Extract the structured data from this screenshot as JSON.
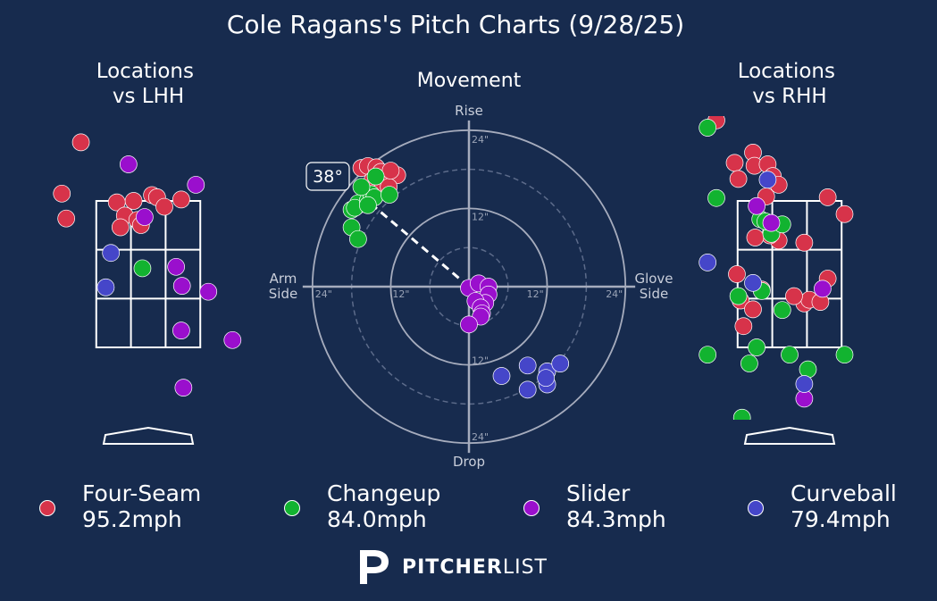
{
  "title": "Cole Ragans's Pitch Charts (9/28/25)",
  "colors": {
    "background": "#172b4e",
    "four_seam": "#d7334a",
    "changeup": "#12b330",
    "slider": "#9a0fcd",
    "curveball": "#4546c9"
  },
  "chart_data": [
    {
      "type": "scatter",
      "title": "Locations\nvs LHH",
      "x_units": "feet from plate center (catcher view)",
      "y_units": "feet above ground",
      "xlim": [
        -1.8,
        1.6
      ],
      "ylim": [
        0,
        5.1
      ],
      "strike_zone": {
        "x": [
          -0.71,
          0.71
        ],
        "y": [
          1.5,
          3.5
        ]
      },
      "series": [
        {
          "name": "Four-Seam",
          "points": [
            [
              -0.92,
              4.3
            ],
            [
              -1.18,
              3.6
            ],
            [
              -1.12,
              3.26
            ],
            [
              -0.2,
              3.5
            ],
            [
              0.05,
              3.58
            ],
            [
              0.12,
              3.55
            ],
            [
              0.22,
              3.42
            ],
            [
              0.45,
              3.52
            ],
            [
              -0.43,
              3.48
            ],
            [
              -0.32,
              3.3
            ],
            [
              -0.15,
              3.24
            ],
            [
              -0.1,
              3.17
            ],
            [
              -0.38,
              3.14
            ]
          ]
        },
        {
          "name": "Changeup",
          "points": [
            [
              -0.08,
              2.58
            ]
          ]
        },
        {
          "name": "Slider",
          "points": [
            [
              -0.27,
              4.0
            ],
            [
              0.65,
              3.72
            ],
            [
              -0.05,
              3.28
            ],
            [
              0.38,
              2.6
            ],
            [
              0.46,
              2.34
            ],
            [
              0.82,
              2.26
            ],
            [
              0.45,
              1.73
            ],
            [
              1.15,
              1.6
            ],
            [
              0.48,
              0.95
            ]
          ]
        },
        {
          "name": "Curveball",
          "points": [
            [
              -0.51,
              2.79
            ],
            [
              -0.58,
              2.32
            ]
          ]
        }
      ]
    },
    {
      "type": "scatter",
      "title": "Movement",
      "polar": true,
      "x_units": "inches horizontal break",
      "y_units": "inches induced vertical break",
      "rings": [
        6,
        12,
        18,
        24
      ],
      "ring_labels": [
        "12\"",
        "24\""
      ],
      "axis_labels": {
        "top": "Rise",
        "bottom": "Drop",
        "left": "Arm\nSide",
        "right": "Glove\nSide"
      },
      "arm_angle": "38°",
      "series": [
        {
          "name": "Four-Seam",
          "points": [
            [
              -16.5,
              18.2
            ],
            [
              -15.5,
              18.5
            ],
            [
              -14.2,
              18.3
            ],
            [
              -13.5,
              17.6
            ],
            [
              -12.8,
              16.5
            ],
            [
              -11.0,
              17.1
            ],
            [
              -14.8,
              16.3
            ],
            [
              -13.2,
              15.6
            ],
            [
              -12.3,
              15.3
            ],
            [
              -12.0,
              17.8
            ]
          ]
        },
        {
          "name": "Changeup",
          "points": [
            [
              -17.0,
              12.5
            ],
            [
              -17.0,
              12.8
            ],
            [
              -18.0,
              11.8
            ],
            [
              -17.5,
              12.1
            ],
            [
              -15.5,
              13.2
            ],
            [
              -15.0,
              14.2
            ],
            [
              -14.5,
              13.7
            ],
            [
              -15.5,
              12.5
            ],
            [
              -12.2,
              14.1
            ],
            [
              -14.3,
              16.9
            ],
            [
              -16.5,
              15.3
            ],
            [
              -18.0,
              9.1
            ],
            [
              -17.0,
              7.3
            ]
          ]
        },
        {
          "name": "Slider",
          "points": [
            [
              0.0,
              -0.2
            ],
            [
              1.5,
              0.5
            ],
            [
              3.0,
              0.0
            ],
            [
              3.0,
              -1.2
            ],
            [
              2.5,
              -2.5
            ],
            [
              1.0,
              -2.2
            ],
            [
              1.8,
              -3.2
            ],
            [
              2.0,
              -4.1
            ],
            [
              1.8,
              -4.6
            ],
            [
              0.0,
              -5.8
            ]
          ]
        },
        {
          "name": "Curveball",
          "points": [
            [
              5.0,
              -13.7
            ],
            [
              9.0,
              -12.1
            ],
            [
              12.0,
              -13.0
            ],
            [
              12.0,
              -15.0
            ],
            [
              9.0,
              -15.8
            ],
            [
              11.8,
              -14.0
            ],
            [
              14.0,
              -11.8
            ]
          ]
        }
      ]
    },
    {
      "type": "scatter",
      "title": "Locations\nvs RHH",
      "x_units": "feet from plate center (catcher view)",
      "y_units": "feet above ground",
      "xlim": [
        -1.8,
        1.6
      ],
      "ylim": [
        0,
        5.1
      ],
      "strike_zone": {
        "x": [
          -0.71,
          0.71
        ],
        "y": [
          1.5,
          3.5
        ]
      },
      "series": [
        {
          "name": "Four-Seam",
          "points": [
            [
              -1.0,
              4.6
            ],
            [
              -0.75,
              4.02
            ],
            [
              -0.5,
              4.16
            ],
            [
              -0.7,
              3.8
            ],
            [
              -0.48,
              3.98
            ],
            [
              -0.3,
              4.0
            ],
            [
              -0.23,
              3.84
            ],
            [
              -0.15,
              3.72
            ],
            [
              -0.32,
              3.56
            ],
            [
              -0.26,
              3.15
            ],
            [
              -0.15,
              2.96
            ],
            [
              -0.27,
              3.03
            ],
            [
              -0.47,
              3.0
            ],
            [
              0.52,
              3.55
            ],
            [
              0.75,
              3.32
            ],
            [
              0.2,
              2.93
            ],
            [
              0.52,
              2.44
            ],
            [
              0.2,
              2.1
            ],
            [
              0.27,
              2.15
            ],
            [
              0.42,
              2.12
            ],
            [
              -0.72,
              2.5
            ],
            [
              -0.67,
              2.14
            ],
            [
              -0.5,
              2.02
            ],
            [
              -0.38,
              2.29
            ],
            [
              0.06,
              2.2
            ],
            [
              -0.63,
              1.79
            ]
          ]
        },
        {
          "name": "Changeup",
          "points": [
            [
              -1.12,
              4.5
            ],
            [
              -1.0,
              3.54
            ],
            [
              -0.4,
              3.25
            ],
            [
              -0.25,
              3.05
            ],
            [
              -0.33,
              3.22
            ],
            [
              -0.1,
              3.18
            ],
            [
              -0.38,
              2.27
            ],
            [
              -0.7,
              2.2
            ],
            [
              -0.1,
              2.01
            ],
            [
              -1.12,
              1.4
            ],
            [
              -0.55,
              1.28
            ],
            [
              -0.45,
              1.5
            ],
            [
              0.0,
              1.4
            ],
            [
              0.75,
              1.4
            ],
            [
              0.25,
              1.2
            ],
            [
              -0.65,
              0.54
            ]
          ]
        },
        {
          "name": "Slider",
          "points": [
            [
              -0.45,
              3.43
            ],
            [
              -0.25,
              3.2
            ],
            [
              0.45,
              2.3
            ],
            [
              0.2,
              0.8
            ]
          ]
        },
        {
          "name": "Curveball",
          "points": [
            [
              -0.3,
              3.79
            ],
            [
              -1.12,
              2.66
            ],
            [
              -0.5,
              2.38
            ],
            [
              0.2,
              1.0
            ]
          ]
        }
      ]
    }
  ],
  "legend": [
    {
      "name": "Four-Seam",
      "speed": "95.2mph",
      "color": "#d7334a"
    },
    {
      "name": "Changeup",
      "speed": "84.0mph",
      "color": "#12b330"
    },
    {
      "name": "Slider",
      "speed": "84.3mph",
      "color": "#9a0fcd"
    },
    {
      "name": "Curveball",
      "speed": "79.4mph",
      "color": "#4546c9"
    }
  ],
  "brand": {
    "bold": "PITCHER",
    "light": "LIST"
  }
}
